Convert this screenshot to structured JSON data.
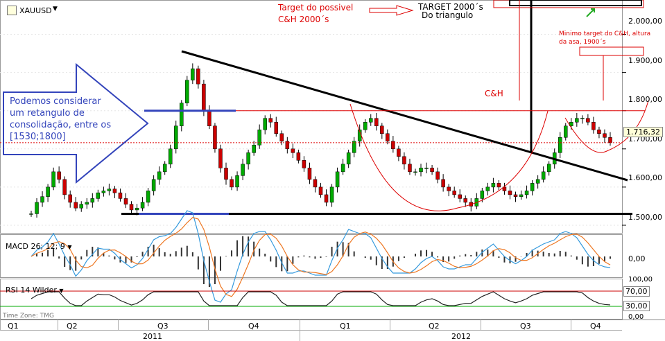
{
  "header": {
    "symbol": "XAUUSD",
    "symbol_icon": "pencil-icon",
    "dropdown_icon": "chevron-down-icon"
  },
  "annotations": {
    "left_box": [
      "Podemos considerar",
      "um retangulo de",
      "consolidação, entre os",
      "[1530;1800]"
    ],
    "target_line1": "Target do possivel",
    "target_line2": "C&H 2000´s",
    "target_tri_1": "TARGET 2000´s",
    "target_tri_2": "Do triangulo",
    "min_target_1": "Minimo target do C&H, altura",
    "min_target_2": "da asa,  1900´s",
    "ch_label": "C&H"
  },
  "panes": {
    "macd_title": "MACD 26; 12; 9",
    "rsi_title": "RSI 14 Wilder",
    "timezone": "Time Zone: TMG"
  },
  "price_axis": {
    "ticks": [
      "2.000,00",
      "1.900,00",
      "1.800,00",
      "1.700,00",
      "1.600,00",
      "1.500,00"
    ],
    "last_price": "1.716,32",
    "macd_ticks": [
      "0,00"
    ],
    "rsi_ticks": [
      "100,00",
      "70,00",
      "30,00",
      "0,00"
    ]
  },
  "time_axis": {
    "quarters": [
      "Q1",
      "Q2",
      "Q3",
      "Q4",
      "Q1",
      "Q2",
      "Q3",
      "Q4"
    ],
    "years": [
      "2011",
      "2012"
    ]
  },
  "colors": {
    "up_candle": "#00aa00",
    "down_candle": "#cc0000",
    "annotation_red": "#dd0000",
    "annotation_blue": "#3344bb",
    "macd_line": "#3399dd",
    "signal_line": "#ee7722",
    "rsi_line": "#222222",
    "rsi_upper": "#cc0000",
    "rsi_lower": "#00aa00"
  },
  "chart_data": {
    "type": "candlestick",
    "ylim": [
      1480,
      2050
    ],
    "price_series": [
      1530,
      1560,
      1575,
      1600,
      1640,
      1620,
      1580,
      1560,
      1545,
      1555,
      1560,
      1570,
      1585,
      1590,
      1595,
      1585,
      1570,
      1555,
      1540,
      1545,
      1560,
      1590,
      1620,
      1640,
      1660,
      1700,
      1760,
      1820,
      1880,
      1910,
      1870,
      1800,
      1760,
      1700,
      1650,
      1620,
      1600,
      1630,
      1660,
      1690,
      1710,
      1750,
      1780,
      1770,
      1740,
      1720,
      1700,
      1690,
      1670,
      1650,
      1620,
      1600,
      1580,
      1560,
      1600,
      1640,
      1660,
      1690,
      1720,
      1750,
      1770,
      1780,
      1760,
      1740,
      1720,
      1700,
      1680,
      1660,
      1640,
      1640,
      1650,
      1650,
      1640,
      1620,
      1600,
      1590,
      1580,
      1570,
      1560,
      1550,
      1570,
      1590,
      1600,
      1610,
      1600,
      1590,
      1580,
      1575,
      1580,
      1590,
      1610,
      1620,
      1640,
      1660,
      1690,
      1730,
      1760,
      1770,
      1780,
      1780,
      1770,
      1750,
      1740,
      1730,
      1716.32
    ]
  }
}
